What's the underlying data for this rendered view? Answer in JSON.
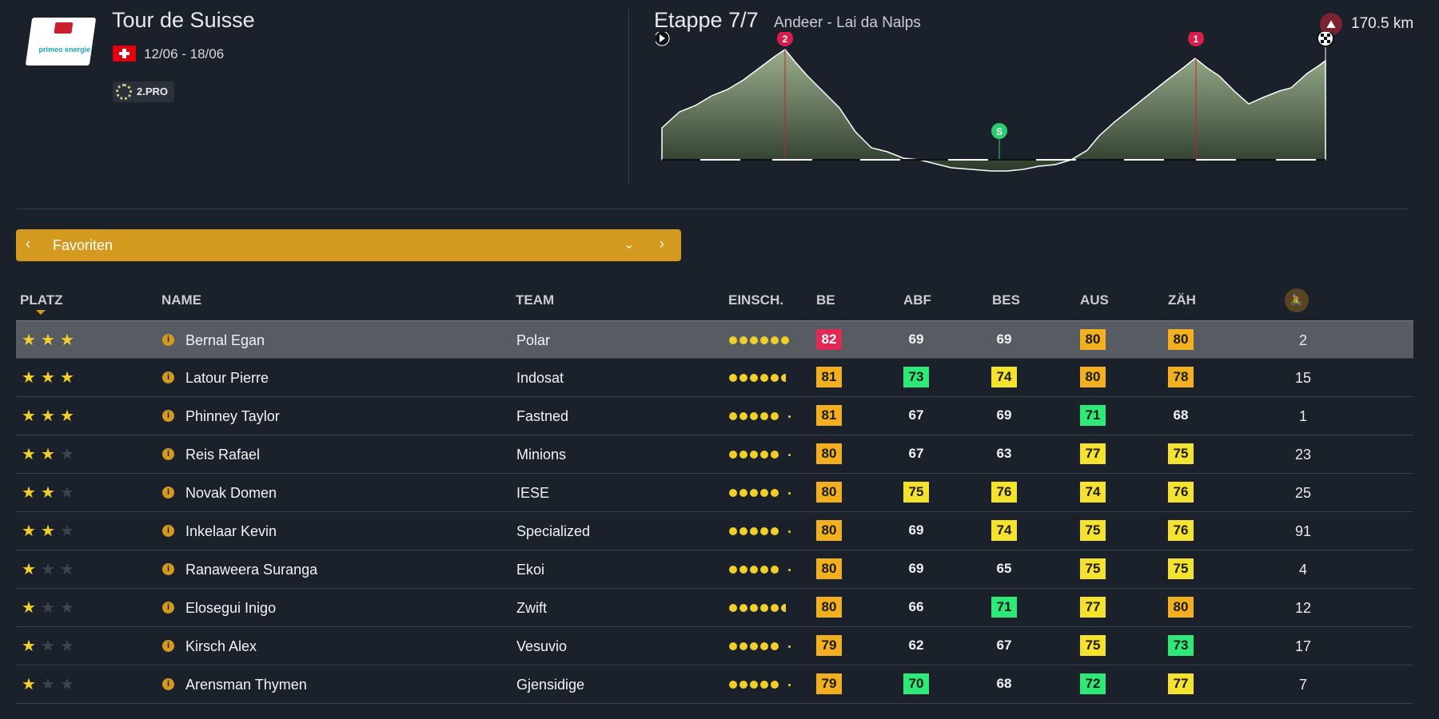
{
  "race": {
    "title": "Tour de Suisse",
    "dates": "12/06 - 18/06",
    "category": "2.PRO",
    "logo_text": "primeo energie"
  },
  "stage": {
    "title": "Etappe 7/7",
    "route": "Andeer - Lai da Nalps",
    "distance": "170.5 km",
    "markers": {
      "climb_a": "2",
      "sprint": "S",
      "climb_b": "1"
    }
  },
  "selector": {
    "label": "Favoriten"
  },
  "table": {
    "headers": {
      "platz": "PLATZ",
      "name": "NAME",
      "team": "TEAM",
      "einsch": "EINSCH.",
      "be": "BE",
      "abf": "ABF",
      "bes": "BES",
      "aus": "AUS",
      "zah": "ZÄH"
    },
    "rows": [
      {
        "stars": 3,
        "name": "Bernal Egan",
        "team": "Polar",
        "dots": 6,
        "be": "82",
        "abf": "69",
        "bes": "69",
        "aus": "80",
        "zah": "80",
        "count": "2",
        "colors": {
          "be": "red",
          "abf": "plain",
          "bes": "plain",
          "aus": "orange",
          "zah": "orange"
        }
      },
      {
        "stars": 3,
        "name": "Latour Pierre",
        "team": "Indosat",
        "dots": 5.5,
        "be": "81",
        "abf": "73",
        "bes": "74",
        "aus": "80",
        "zah": "78",
        "count": "15",
        "colors": {
          "be": "orange",
          "abf": "green",
          "bes": "yellow",
          "aus": "orange",
          "zah": "orange"
        }
      },
      {
        "stars": 3,
        "name": "Phinney Taylor",
        "team": "Fastned",
        "dots": 5,
        "be": "81",
        "abf": "67",
        "bes": "69",
        "aus": "71",
        "zah": "68",
        "count": "1",
        "colors": {
          "be": "orange",
          "abf": "plain",
          "bes": "plain",
          "aus": "green",
          "zah": "plain"
        }
      },
      {
        "stars": 2,
        "name": "Reis Rafael",
        "team": "Minions",
        "dots": 5,
        "be": "80",
        "abf": "67",
        "bes": "63",
        "aus": "77",
        "zah": "75",
        "count": "23",
        "colors": {
          "be": "orange",
          "abf": "plain",
          "bes": "plain",
          "aus": "yellow",
          "zah": "yellow"
        }
      },
      {
        "stars": 2,
        "name": "Novak Domen",
        "team": "IESE",
        "dots": 5,
        "be": "80",
        "abf": "75",
        "bes": "76",
        "aus": "74",
        "zah": "76",
        "count": "25",
        "colors": {
          "be": "orange",
          "abf": "yellow",
          "bes": "yellow",
          "aus": "yellow",
          "zah": "yellow"
        }
      },
      {
        "stars": 2,
        "name": "Inkelaar Kevin",
        "team": "Specialized",
        "dots": 5,
        "be": "80",
        "abf": "69",
        "bes": "74",
        "aus": "75",
        "zah": "76",
        "count": "91",
        "colors": {
          "be": "orange",
          "abf": "plain",
          "bes": "yellow",
          "aus": "yellow",
          "zah": "yellow"
        }
      },
      {
        "stars": 1,
        "name": "Ranaweera Suranga",
        "team": "Ekoi",
        "dots": 5,
        "be": "80",
        "abf": "69",
        "bes": "65",
        "aus": "75",
        "zah": "75",
        "count": "4",
        "colors": {
          "be": "orange",
          "abf": "plain",
          "bes": "plain",
          "aus": "yellow",
          "zah": "yellow"
        }
      },
      {
        "stars": 1,
        "name": "Elosegui Inigo",
        "team": "Zwift",
        "dots": 5.5,
        "be": "80",
        "abf": "66",
        "bes": "71",
        "aus": "77",
        "zah": "80",
        "count": "12",
        "colors": {
          "be": "orange",
          "abf": "plain",
          "bes": "green",
          "aus": "yellow",
          "zah": "orange"
        }
      },
      {
        "stars": 1,
        "name": "Kirsch Alex",
        "team": "Vesuvio",
        "dots": 5,
        "be": "79",
        "abf": "62",
        "bes": "67",
        "aus": "75",
        "zah": "73",
        "count": "17",
        "colors": {
          "be": "orange",
          "abf": "plain",
          "bes": "plain",
          "aus": "yellow",
          "zah": "green"
        }
      },
      {
        "stars": 1,
        "name": "Arensman Thymen",
        "team": "Gjensidige",
        "dots": 5,
        "be": "79",
        "abf": "70",
        "bes": "68",
        "aus": "72",
        "zah": "77",
        "count": "7",
        "colors": {
          "be": "orange",
          "abf": "green",
          "bes": "plain",
          "aus": "green",
          "zah": "yellow"
        }
      }
    ]
  },
  "colors": {
    "background": "#1b212b",
    "accent": "#d4991f",
    "red": "#e02a55",
    "orange": "#f2b01e",
    "yellow": "#f5e22e",
    "green": "#2ee877",
    "star": "#f2cf2c"
  },
  "icons": {
    "sort": "sort-desc-icon",
    "cyclist": "cyclist-icon",
    "info": "info-icon",
    "distance": "mountain-icon",
    "start": "play-icon",
    "finish": "checkered-flag-icon"
  }
}
